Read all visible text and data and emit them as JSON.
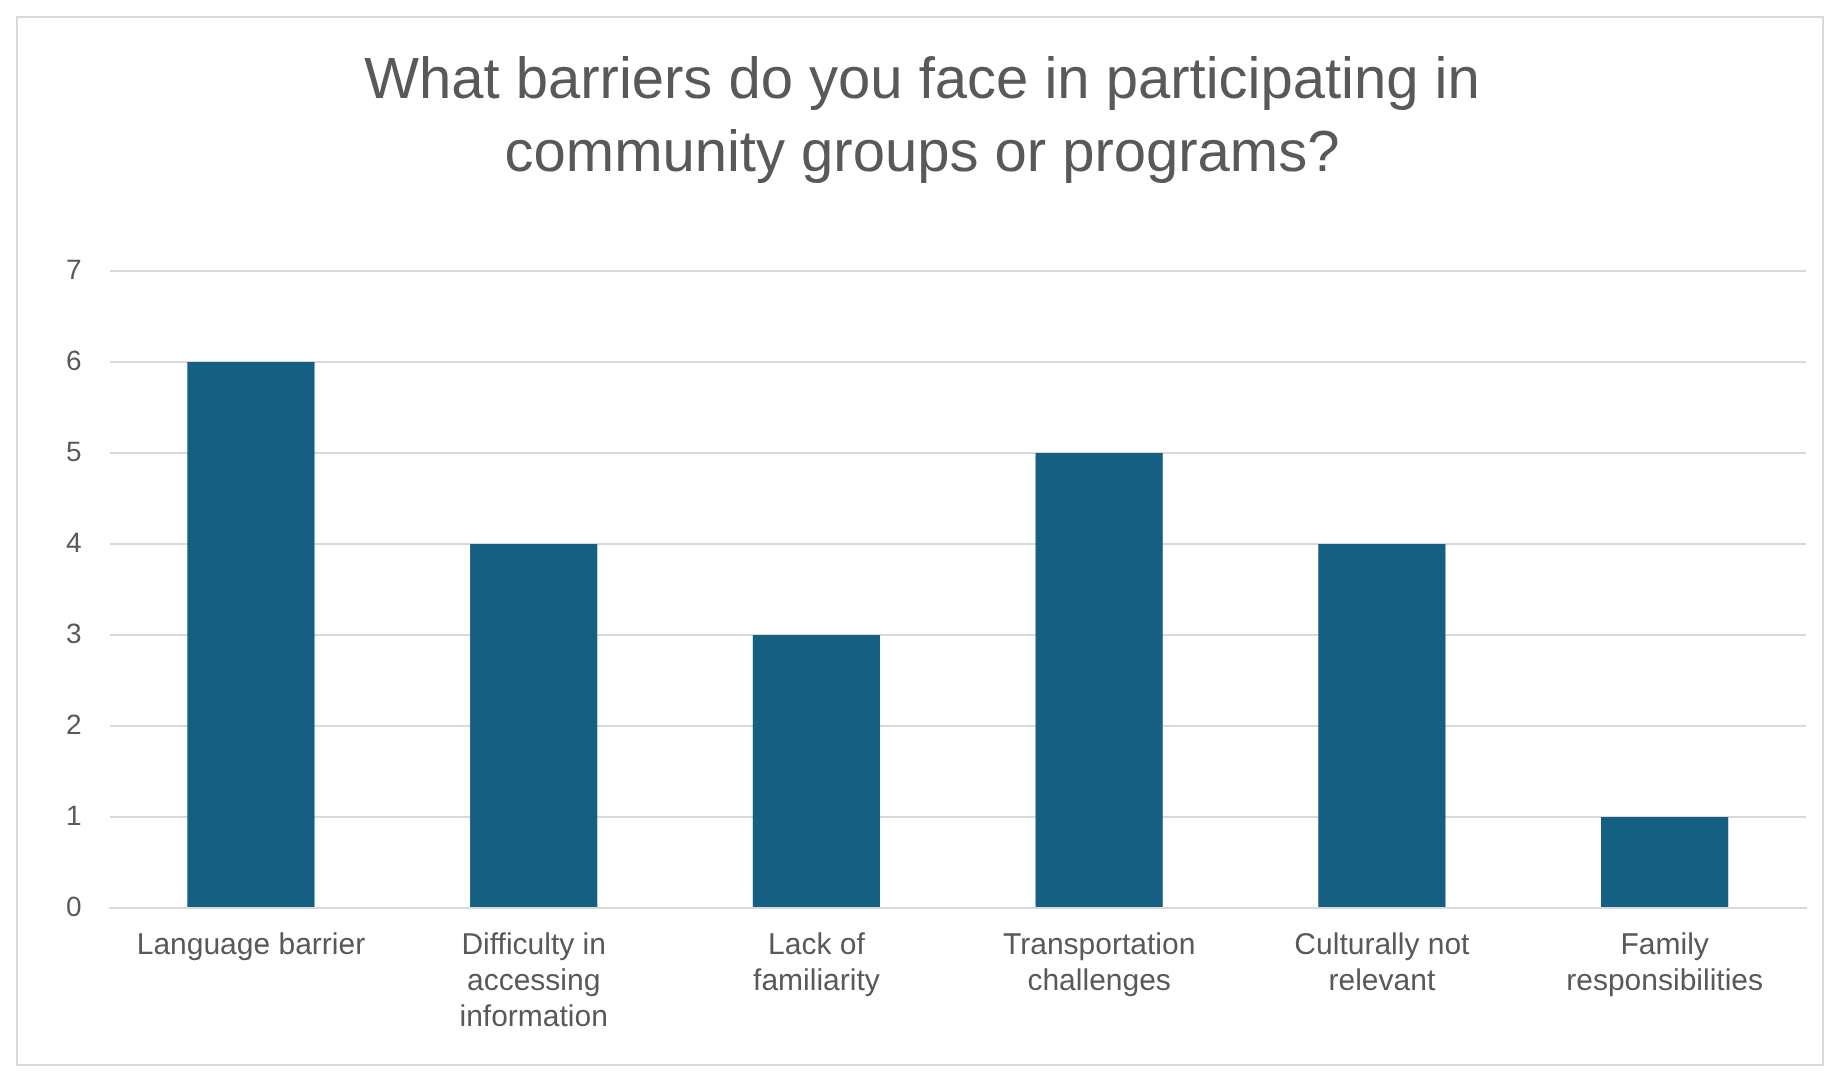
{
  "chart_data": {
    "type": "bar",
    "title": "What barriers do you face in participating in community groups or programs?",
    "categories": [
      "Language barrier",
      "Difficulty in accessing information",
      "Lack of familiarity",
      "Transportation challenges",
      "Culturally not relevant",
      "Family responsibilities"
    ],
    "values": [
      6,
      4,
      3,
      5,
      4,
      1
    ],
    "color": "#156082",
    "ylim": [
      0,
      7
    ],
    "yticks": [
      0,
      1,
      2,
      3,
      4,
      5,
      6,
      7
    ],
    "grid": "y",
    "legend": false
  }
}
